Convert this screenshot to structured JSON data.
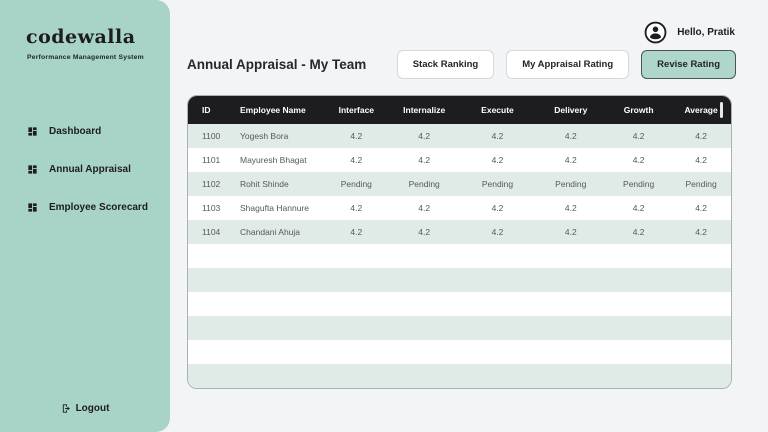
{
  "sidebar": {
    "logo": "codewalla",
    "subtitle": "Performance Management System",
    "items": [
      {
        "label": "Dashboard",
        "icon": "dashboard-grid-icon"
      },
      {
        "label": "Annual Appraisal",
        "icon": "dashboard-grid-icon"
      },
      {
        "label": "Employee Scorecard",
        "icon": "dashboard-grid-icon"
      }
    ],
    "logout_label": "Logout",
    "logout_icon": "logout-icon"
  },
  "header": {
    "greeting": "Hello, Pratik",
    "avatar_icon": "user-avatar-icon",
    "title": "Annual Appraisal - My Team",
    "buttons": [
      {
        "label": "Stack Ranking",
        "variant": "secondary"
      },
      {
        "label": "My Appraisal Rating",
        "variant": "secondary"
      },
      {
        "label": "Revise Rating",
        "variant": "primary"
      }
    ]
  },
  "table": {
    "columns": [
      "ID",
      "Employee Name",
      "Interface",
      "Internalize",
      "Execute",
      "Delivery",
      "Growth",
      "Average"
    ],
    "rows": [
      [
        "1100",
        "Yogesh Bora",
        "4.2",
        "4.2",
        "4.2",
        "4.2",
        "4.2",
        "4.2"
      ],
      [
        "1101",
        "Mayuresh Bhagat",
        "4.2",
        "4.2",
        "4.2",
        "4.2",
        "4.2",
        "4.2"
      ],
      [
        "1102",
        "Rohit Shinde",
        "Pending",
        "Pending",
        "Pending",
        "Pending",
        "Pending",
        "Pending"
      ],
      [
        "1103",
        "Shagufta Hannure",
        "4.2",
        "4.2",
        "4.2",
        "4.2",
        "4.2",
        "4.2"
      ],
      [
        "1104",
        "Chandani Ahuja",
        "4.2",
        "4.2",
        "4.2",
        "4.2",
        "4.2",
        "4.2"
      ]
    ],
    "empty_row_count": 6
  },
  "colors": {
    "sidebar_bg": "#a8d3c8",
    "row_stripe": "#e0ebe8",
    "table_header_bg": "#1d1d1f",
    "page_bg": "#f2f4f6",
    "primary_button_bg": "#aed6cb"
  }
}
